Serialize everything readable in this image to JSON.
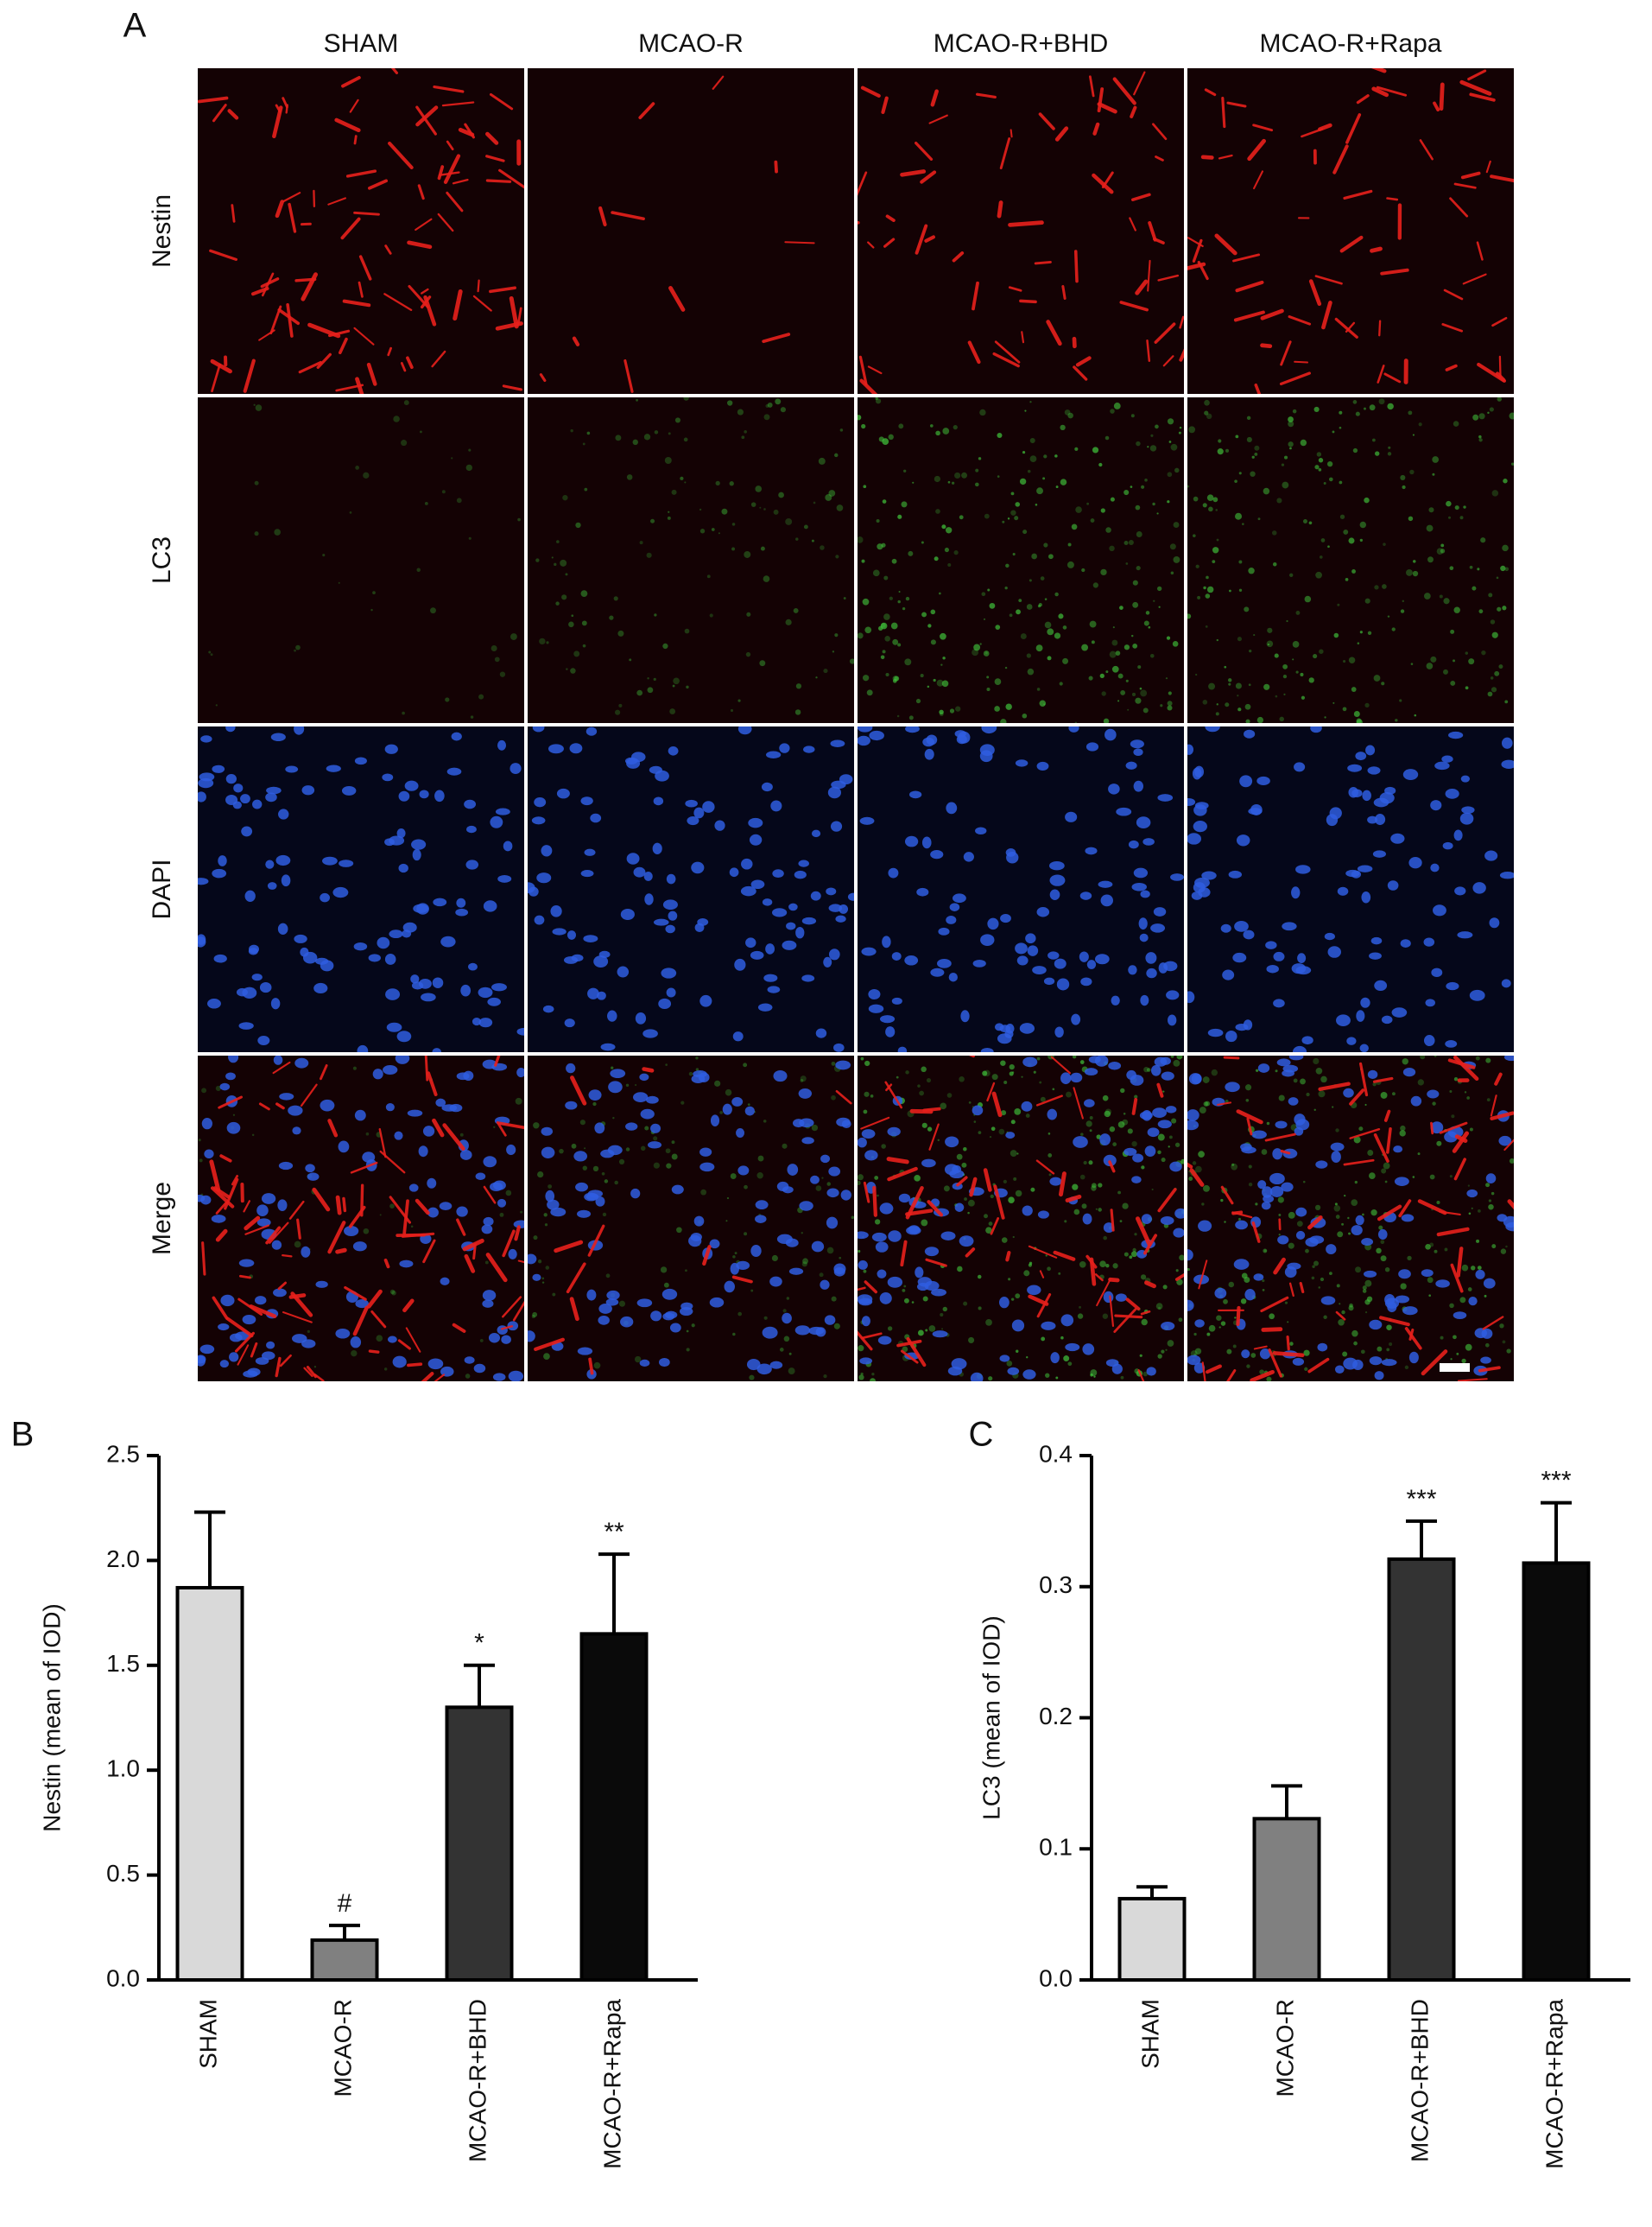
{
  "panel_a": {
    "label": "A",
    "columns": [
      "SHAM",
      "MCAO-R",
      "MCAO-R+BHD",
      "MCAO-R+Rapa"
    ],
    "rows": [
      "Nestin",
      "LC3",
      "DAPI",
      "Merge"
    ]
  },
  "chart_data": [
    {
      "type": "bar",
      "panel_label": "B",
      "y_label": "Nestin (mean of IOD)",
      "categories": [
        "SHAM",
        "MCAO-R",
        "MCAO-R+BHD",
        "MCAO-R+Rapa"
      ],
      "values": [
        1.87,
        0.19,
        1.3,
        1.65
      ],
      "errors": [
        0.36,
        0.07,
        0.2,
        0.38
      ],
      "annotations": [
        null,
        "#",
        "*",
        "**"
      ],
      "colors": [
        "#d9d9d9",
        "#808080",
        "#333333",
        "#0a0a0a"
      ],
      "ylim": [
        0,
        2.5
      ],
      "yticks": [
        {
          "value": 0,
          "label": "0.0"
        },
        0.5,
        {
          "value": 1,
          "label": "1.0"
        },
        1.5,
        {
          "value": 2,
          "label": "2.0"
        },
        2.5
      ]
    },
    {
      "type": "bar",
      "panel_label": "C",
      "y_label": "LC3 (mean of IOD)",
      "categories": [
        "SHAM",
        "MCAO-R",
        "MCAO-R+BHD",
        "MCAO-R+Rapa"
      ],
      "values": [
        0.062,
        0.123,
        0.321,
        0.318
      ],
      "errors": [
        0.009,
        0.025,
        0.029,
        0.046
      ],
      "annotations": [
        null,
        null,
        "***",
        "***"
      ],
      "colors": [
        "#d9d9d9",
        "#808080",
        "#333333",
        "#0a0a0a"
      ],
      "ylim": [
        0,
        0.4
      ],
      "yticks": [
        {
          "value": 0,
          "label": "0.0"
        },
        0.1,
        0.2,
        0.3,
        0.4
      ]
    }
  ]
}
